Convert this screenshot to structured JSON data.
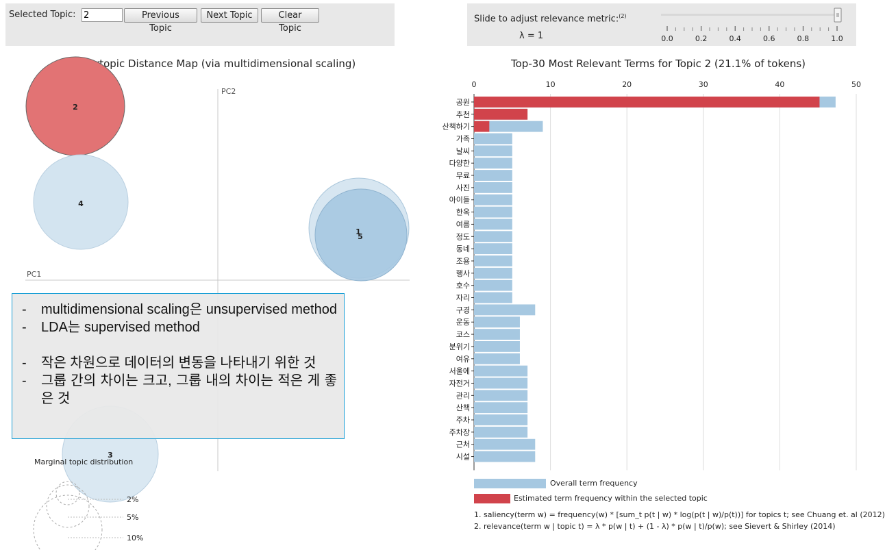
{
  "topic_controls": {
    "selected_label": "Selected Topic:",
    "selected_value": "2",
    "prev_label": "Previous Topic",
    "next_label": "Next Topic",
    "clear_label": "Clear Topic"
  },
  "relevance": {
    "label": "Slide to adjust relevance metric:",
    "footnote_mark": "(2)",
    "lambda_text": "λ = 1",
    "lambda_value": 1,
    "ticks": [
      "0.0",
      "0.2",
      "0.4",
      "0.6",
      "0.8",
      "1.0"
    ]
  },
  "map": {
    "title": "Intertopic Distance Map (via multidimensional scaling)",
    "pc1_label": "PC1",
    "pc2_label": "PC2",
    "topics": [
      {
        "id": "1",
        "selected": false
      },
      {
        "id": "2",
        "selected": true
      },
      {
        "id": "3",
        "selected": false
      },
      {
        "id": "4",
        "selected": false
      },
      {
        "id": "5",
        "selected": false
      }
    ],
    "marginal_label": "Marginal topic distribution",
    "marginal_sizes": [
      "2%",
      "5%",
      "10%"
    ]
  },
  "note": {
    "lines": [
      "multidimensional scaling은 unsupervised method",
      "LDA는 supervised method",
      "작은 차원으로 데이터의 변동을 나타내기 위한 것",
      "그룹 간의 차이는 크고, 그룹 내의 차이는 적은 게 좋은 것"
    ]
  },
  "bars": {
    "title": "Top-30 Most Relevant Terms for Topic 2 (21.1% of tokens)",
    "colors": {
      "overall": "#a6c8e1",
      "estimated": "#d1434b"
    },
    "legend_overall": "Overall term frequency",
    "legend_estimated": "Estimated term frequency within the selected topic",
    "footnote1": "1. saliency(term w) = frequency(w) * [sum_t p(t | w) * log(p(t | w)/p(t))] for topics t; see Chuang et. al (2012)",
    "footnote2": "2. relevance(term w | topic t) = λ * p(w | t) + (1 - λ) * p(w | t)/p(w); see Sievert & Shirley (2014)"
  },
  "chart_data": {
    "type": "bar",
    "orientation": "horizontal",
    "title": "Top-30 Most Relevant Terms for Topic 2 (21.1% of tokens)",
    "xlim": [
      0,
      50
    ],
    "x_ticks": [
      "0",
      "10",
      "20",
      "30",
      "40",
      "50"
    ],
    "grid": true,
    "categories": [
      "공원",
      "추천",
      "산책하기",
      "가족",
      "날씨",
      "다양한",
      "무료",
      "사진",
      "아이들",
      "한옥",
      "여름",
      "정도",
      "동네",
      "조용",
      "행사",
      "호수",
      "자리",
      "구경",
      "운동",
      "코스",
      "분위기",
      "여유",
      "서울에",
      "자전거",
      "관리",
      "산책",
      "주차",
      "주차장",
      "근처",
      "시설"
    ],
    "series": [
      {
        "name": "Overall term frequency",
        "values": [
          47.3,
          7,
          9,
          5,
          5,
          5,
          5,
          5,
          5,
          5,
          5,
          5,
          5,
          5,
          5,
          5,
          5,
          8,
          6,
          6,
          6,
          6,
          7,
          7,
          7,
          7,
          7,
          7,
          8,
          8
        ]
      },
      {
        "name": "Estimated term frequency within the selected topic",
        "values": [
          45.2,
          7,
          2,
          0,
          0,
          0,
          0,
          0,
          0,
          0,
          0,
          0,
          0,
          0,
          0,
          0,
          0,
          0,
          0,
          0,
          0,
          0,
          0,
          0,
          0,
          0,
          0,
          0,
          0,
          0
        ]
      }
    ]
  }
}
